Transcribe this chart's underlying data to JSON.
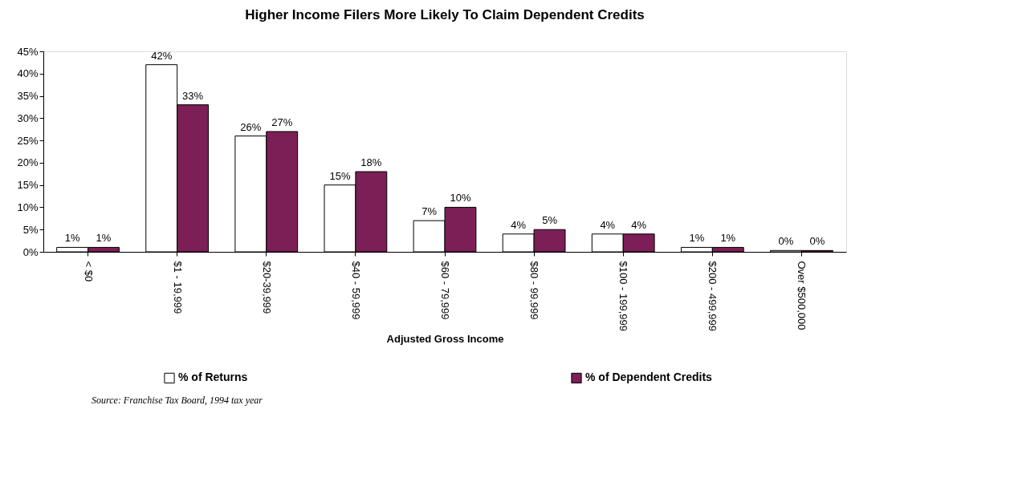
{
  "chart_data": {
    "type": "bar",
    "title": "Higher Income Filers More Likely To Claim Dependent Credits",
    "xlabel": "Adjusted Gross Income",
    "categories": [
      "< $0",
      "$1 - 19,999",
      "$20-39,999",
      "$40 - 59,999",
      "$60 - 79,999",
      "$80 - 99,999",
      "$100 - 199,999",
      "$200 - 499,999",
      "Over $500,000"
    ],
    "series": [
      {
        "name": "% of Returns",
        "color": "#ffffff",
        "values": [
          1,
          42,
          26,
          15,
          7,
          4,
          4,
          1,
          0.3
        ],
        "value_labels": [
          "1%",
          "42%",
          "26%",
          "15%",
          "7%",
          "4%",
          "4%",
          "1%",
          "0%"
        ]
      },
      {
        "name": "% of Dependent Credits",
        "color": "#7b1f56",
        "values": [
          1,
          33,
          27,
          18,
          10,
          5,
          4,
          1,
          0.3
        ],
        "value_labels": [
          "1%",
          "33%",
          "27%",
          "18%",
          "10%",
          "5%",
          "4%",
          "1%",
          "0%"
        ]
      }
    ],
    "ylim": [
      0,
      45
    ],
    "yticks": [
      {
        "value": 0,
        "label": "0%"
      },
      {
        "value": 5,
        "label": "5%"
      },
      {
        "value": 10,
        "label": "10%"
      },
      {
        "value": 15,
        "label": "15%"
      },
      {
        "value": 20,
        "label": "20%"
      },
      {
        "value": 25,
        "label": "25%"
      },
      {
        "value": 30,
        "label": "30%"
      },
      {
        "value": 35,
        "label": "35%"
      },
      {
        "value": 40,
        "label": "40%"
      },
      {
        "value": 45,
        "label": "45%"
      }
    ],
    "grid": false,
    "legend": "bottom",
    "annotations": [
      "Source: Franchise Tax Board, 1994 tax year"
    ]
  }
}
